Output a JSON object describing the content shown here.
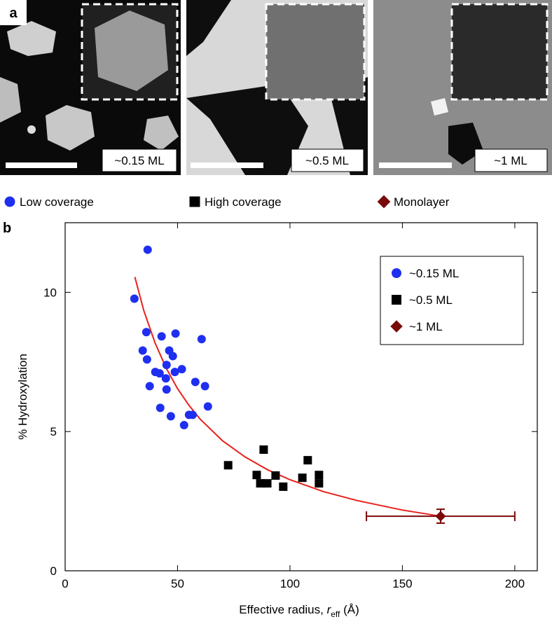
{
  "panel_a": {
    "label": "a",
    "images": [
      {
        "label": "~0.15 ML"
      },
      {
        "label": "~0.5 ML"
      },
      {
        "label": "~1 ML"
      }
    ]
  },
  "chart_data": {
    "type": "scatter",
    "panel_label": "b",
    "y_label": "% Hydroxylation",
    "x_label": {
      "text": "Effective radius, ",
      "var": "r",
      "sub": "eff",
      "unit": " (Å)"
    },
    "xlim": [
      0,
      210
    ],
    "xticks": [
      0,
      50,
      100,
      150,
      200
    ],
    "ylim": [
      0,
      12.5
    ],
    "yticks": [
      0,
      5,
      10
    ],
    "series": [
      {
        "name": "Low coverage",
        "legend_label": "~0.15 ML",
        "color": "#1f2ff0",
        "marker": "circle",
        "x": [
          36.7,
          30.8,
          36.1,
          34.5,
          36.4,
          37.6,
          42.9,
          49.1,
          60.7,
          46.3,
          47.9,
          45.1,
          40.1,
          42.0,
          48.8,
          51.9,
          44.8,
          45.1,
          57.9,
          62.2,
          42.3,
          47.0,
          63.5,
          55.1,
          56.7,
          52.9
        ],
        "values": [
          11.53,
          9.77,
          8.57,
          7.91,
          7.59,
          6.63,
          8.42,
          8.52,
          8.32,
          7.91,
          7.71,
          7.39,
          7.14,
          7.09,
          7.14,
          7.24,
          6.91,
          6.51,
          6.78,
          6.63,
          5.85,
          5.55,
          5.9,
          5.6,
          5.6,
          5.23
        ]
      },
      {
        "name": "High coverage",
        "legend_label": "~0.5 ML",
        "color": "#000000",
        "marker": "square",
        "x": [
          72.5,
          88.3,
          85.2,
          86.8,
          89.9,
          93.6,
          97.0,
          105.5,
          107.9,
          112.9,
          112.9
        ],
        "values": [
          3.79,
          4.35,
          3.44,
          3.14,
          3.14,
          3.42,
          3.02,
          3.34,
          3.97,
          3.44,
          3.14
        ]
      },
      {
        "name": "Monolayer",
        "legend_label": "~1 ML",
        "color": "#7a0a0a",
        "marker": "diamond",
        "x": [
          167
        ],
        "values": [
          1.96
        ],
        "xerr": [
          33
        ],
        "yerr": [
          0.25
        ]
      }
    ],
    "fit": {
      "color": "#e8201c",
      "x": [
        31,
        35,
        40,
        45,
        50,
        55,
        60,
        70,
        80,
        90,
        100,
        115,
        130,
        150,
        167
      ],
      "values": [
        10.55,
        9.34,
        8.18,
        7.27,
        6.54,
        5.95,
        5.45,
        4.67,
        4.09,
        3.63,
        3.27,
        2.84,
        2.52,
        2.18,
        1.96
      ]
    }
  }
}
